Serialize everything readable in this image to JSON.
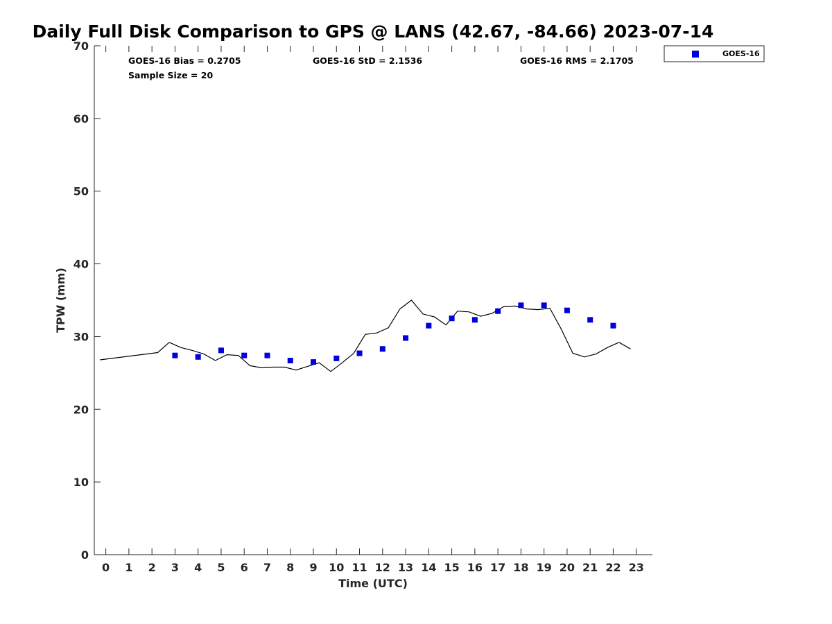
{
  "chart_data": {
    "type": "scatter",
    "title": "Daily Full Disk Comparison to GPS @ LANS (42.67, -84.66) 2023-07-14",
    "xlabel": "Time (UTC)",
    "ylabel": "TPW (mm)",
    "xlim": [
      -0.5,
      23.7
    ],
    "ylim": [
      0,
      70
    ],
    "x_ticks": [
      "0",
      "1",
      "2",
      "3",
      "4",
      "5",
      "6",
      "7",
      "8",
      "9",
      "10",
      "11",
      "12",
      "13",
      "14",
      "15",
      "16",
      "17",
      "18",
      "19",
      "20",
      "21",
      "22",
      "23"
    ],
    "y_ticks": [
      "0",
      "10",
      "20",
      "30",
      "40",
      "50",
      "60",
      "70"
    ],
    "grid": false,
    "stats": {
      "bias": "GOES-16 Bias = 0.2705",
      "sample_size": "Sample Size = 20",
      "std": "GOES-16 StD = 2.1536",
      "rms": "GOES-16 RMS = 2.1705"
    },
    "legend": {
      "position": "top-right",
      "entries": [
        "GOES-16"
      ]
    },
    "series": [
      {
        "name": "GPS",
        "style": "line",
        "color": "#000000",
        "x": [
          -0.25,
          2.25,
          2.75,
          3.25,
          3.75,
          4.25,
          4.75,
          5.25,
          5.75,
          6.25,
          6.75,
          7.25,
          7.75,
          8.25,
          8.75,
          9.25,
          9.75,
          10.25,
          10.75,
          11.25,
          11.75,
          12.25,
          12.75,
          13.25,
          13.75,
          14.25,
          14.75,
          15.25,
          15.75,
          16.25,
          16.75,
          17.25,
          17.75,
          18.25,
          18.75,
          19.25,
          19.75,
          20.25,
          20.75,
          21.25,
          21.75,
          22.25,
          22.75
        ],
        "y": [
          26.8,
          27.8,
          29.2,
          28.5,
          28.1,
          27.6,
          26.7,
          27.5,
          27.4,
          26.0,
          25.7,
          25.8,
          25.8,
          25.4,
          25.9,
          26.4,
          25.2,
          26.4,
          27.7,
          30.3,
          30.5,
          31.2,
          33.8,
          35.0,
          33.1,
          32.7,
          31.6,
          33.5,
          33.4,
          32.8,
          33.2,
          34.1,
          34.2,
          33.8,
          33.7,
          33.9,
          31.0,
          27.7,
          27.2,
          27.6,
          28.5,
          29.2,
          28.3
        ]
      },
      {
        "name": "GOES-16",
        "style": "marker",
        "color": "#0000dd",
        "x": [
          3,
          4,
          5,
          6,
          7,
          8,
          9,
          10,
          11,
          12,
          13,
          14,
          15,
          16,
          17,
          18,
          19,
          20,
          21,
          22
        ],
        "y": [
          27.4,
          27.2,
          28.1,
          27.4,
          27.4,
          26.7,
          26.5,
          27.0,
          27.7,
          28.3,
          29.8,
          31.5,
          32.5,
          32.3,
          33.5,
          34.3,
          34.3,
          33.6,
          32.3,
          31.5
        ]
      }
    ]
  }
}
